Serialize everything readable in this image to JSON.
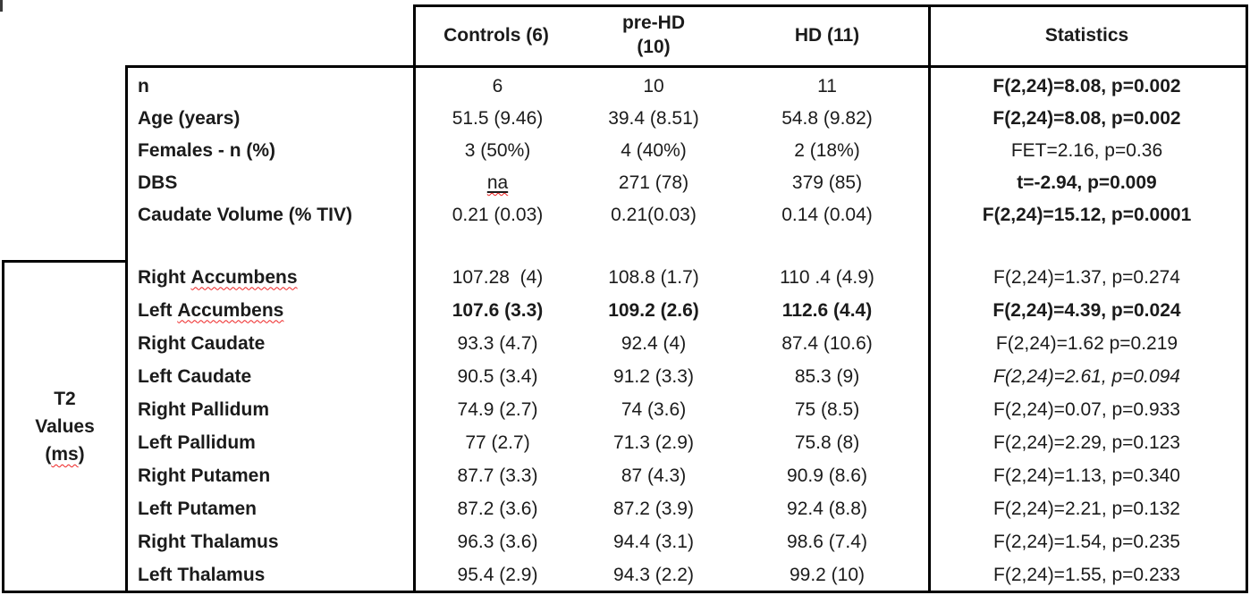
{
  "table": {
    "header": {
      "col_controls": "Controls (6)",
      "col_prehd_line1": "pre-HD",
      "col_prehd_line2": "(10)",
      "col_hd": "HD (11)",
      "col_stats": "Statistics"
    },
    "side_label": {
      "line1": "T2",
      "line2": "Values",
      "ms_open": "(",
      "ms_word": "ms",
      "ms_close": ")"
    },
    "demographic_rows": [
      {
        "label": "n",
        "controls": "6",
        "prehd": "10",
        "hd": "11",
        "stats": "F(2,24)=8.08, p=0.002",
        "stats_bold": true
      },
      {
        "label": "Age (years)",
        "controls": "51.5 (9.46)",
        "prehd": "39.4 (8.51)",
        "hd": "54.8 (9.82)",
        "stats": "F(2,24)=8.08, p=0.002",
        "stats_bold": true
      },
      {
        "label": "Females - n (%)",
        "controls": "3 (50%)",
        "prehd": "4 (40%)",
        "hd": "2 (18%)",
        "stats": "FET=2.16, p=0.36"
      },
      {
        "label": "DBS",
        "controls": "na",
        "controls_na": true,
        "prehd": "271 (78)",
        "hd": "379 (85)",
        "stats": "t=-2.94, p=0.009",
        "stats_bold": true
      },
      {
        "label": "Caudate Volume (% TIV)",
        "controls": "0.21 (0.03)",
        "prehd": "0.21(0.03)",
        "hd": "0.14 (0.04)",
        "stats": "F(2,24)=15.12, p=0.0001",
        "stats_bold": true
      }
    ],
    "t2_rows": [
      {
        "label_prefix": "Right ",
        "label_word": "Accumbens",
        "controls": "107.28  (4)",
        "prehd": "108.8 (1.7)",
        "hd": "110 .4 (4.9)",
        "stats": "F(2,24)=1.37, p=0.274"
      },
      {
        "label_prefix": "Left ",
        "label_word": "Accumbens",
        "controls": "107.6 (3.3)",
        "prehd": "109.2 (2.6)",
        "hd": "112.6 (4.4)",
        "values_bold": true,
        "stats": "F(2,24)=4.39, p=0.024",
        "stats_bold": true
      },
      {
        "label": "Right Caudate",
        "controls": "93.3 (4.7)",
        "prehd": "92.4 (4)",
        "hd": "87.4 (10.6)",
        "stats": "F(2,24)=1.62 p=0.219"
      },
      {
        "label": "Left Caudate",
        "controls": "90.5 (3.4)",
        "prehd": "91.2 (3.3)",
        "hd": "85.3 (9)",
        "stats": "F(2,24)=2.61, p=0.094",
        "stats_italic": true
      },
      {
        "label": "Right Pallidum",
        "controls": "74.9 (2.7)",
        "prehd": "74 (3.6)",
        "hd": "75 (8.5)",
        "stats": "F(2,24)=0.07, p=0.933"
      },
      {
        "label": "Left Pallidum",
        "controls": "77 (2.7)",
        "prehd": "71.3 (2.9)",
        "hd": "75.8 (8)",
        "stats": "F(2,24)=2.29, p=0.123"
      },
      {
        "label": "Right Putamen",
        "controls": "87.7 (3.3)",
        "prehd": "87 (4.3)",
        "hd": "90.9 (8.6)",
        "stats": "F(2,24)=1.13, p=0.340"
      },
      {
        "label": "Left Putamen",
        "controls": "87.2 (3.6)",
        "prehd": "87.2 (3.9)",
        "hd": "92.4 (8.8)",
        "stats": "F(2,24)=2.21, p=0.132"
      },
      {
        "label": "Right Thalamus",
        "controls": "96.3 (3.6)",
        "prehd": "94.4 (3.1)",
        "hd": "98.6 (7.4)",
        "stats": "F(2,24)=1.54, p=0.235"
      },
      {
        "label": "Left Thalamus",
        "controls": "95.4 (2.9)",
        "prehd": "94.3 (2.2)",
        "hd": "99.2 (10)",
        "stats": "F(2,24)=1.55, p=0.233"
      }
    ]
  },
  "colors": {
    "border": "#000000",
    "text": "#1b1b1b",
    "background": "#ffffff",
    "spellcheck_squiggle": "#ee2222"
  }
}
